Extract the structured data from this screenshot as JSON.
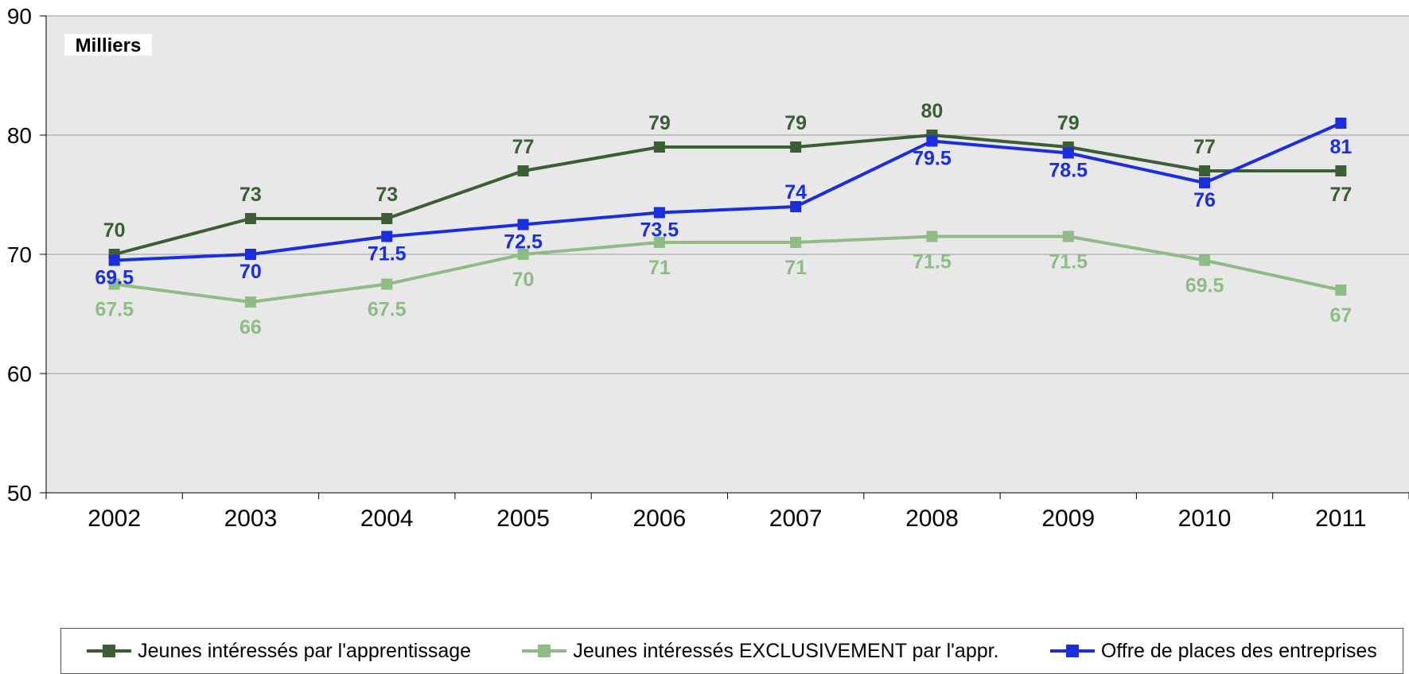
{
  "chart_data": {
    "type": "line",
    "title": "",
    "units_label": "Milliers",
    "xlabel": "",
    "ylabel": "",
    "categories": [
      "2002",
      "2003",
      "2004",
      "2005",
      "2006",
      "2007",
      "2008",
      "2009",
      "2010",
      "2011"
    ],
    "ylim": [
      50,
      90
    ],
    "yticks": [
      50,
      60,
      70,
      80,
      90
    ],
    "grid": true,
    "legend_position": "bottom",
    "series": [
      {
        "name": "Jeunes intéressés par l'apprentissage",
        "color": "#3b5e35",
        "values": [
          70,
          73,
          73,
          77,
          79,
          79,
          80,
          79,
          77,
          77
        ],
        "labels": [
          "70",
          "73",
          "73",
          "77",
          "79",
          "79",
          "80",
          "79",
          "77",
          "77"
        ]
      },
      {
        "name": "Jeunes intéressés EXCLUSIVEMENT par l'appr.",
        "color": "#8fbc84",
        "values": [
          67.5,
          66,
          67.5,
          70,
          71,
          71,
          71.5,
          71.5,
          69.5,
          67
        ],
        "labels": [
          "67.5",
          "66",
          "67.5",
          "70",
          "71",
          "71",
          "71.5",
          "71.5",
          "69.5",
          "67"
        ]
      },
      {
        "name": "Offre de places des entreprises",
        "color": "#1a2ee0",
        "values": [
          69.5,
          70,
          71.5,
          72.5,
          73.5,
          74,
          79.5,
          78.5,
          76,
          81
        ],
        "labels": [
          "69.5",
          "70",
          "71.5",
          "72.5",
          "73.5",
          "74",
          "79.5",
          "78.5",
          "76",
          "81"
        ]
      }
    ]
  }
}
